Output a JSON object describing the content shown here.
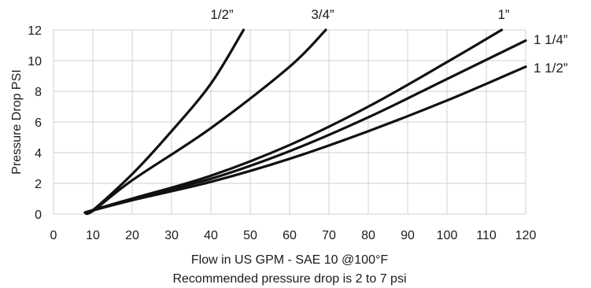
{
  "chart_data": {
    "type": "line",
    "xlabel": "Flow in US GPM - SAE 10 @100°F",
    "note": "Recommended pressure drop is 2 to 7 psi",
    "ylabel": "Pressure Drop PSI",
    "xlim": [
      0,
      120
    ],
    "ylim": [
      0,
      12
    ],
    "x_ticks": [
      "0",
      "10",
      "20",
      "30",
      "40",
      "50",
      "60",
      "70",
      "80",
      "90",
      "100",
      "110",
      "120"
    ],
    "y_ticks": [
      "0",
      "2",
      "4",
      "6",
      "8",
      "10",
      "12"
    ],
    "grid": true,
    "series": [
      {
        "name": "1/2”",
        "points": [
          [
            8,
            0.1
          ],
          [
            10,
            0.25
          ],
          [
            20,
            2.6
          ],
          [
            30,
            5.4
          ],
          [
            40,
            8.5
          ],
          [
            48.3,
            12
          ]
        ]
      },
      {
        "name": "3/4”",
        "points": [
          [
            8,
            0.1
          ],
          [
            10,
            0.2
          ],
          [
            20,
            2.2
          ],
          [
            40,
            5.6
          ],
          [
            60,
            9.6
          ],
          [
            69.2,
            12
          ]
        ]
      },
      {
        "name": "1”",
        "points": [
          [
            8,
            0.1
          ],
          [
            20,
            1.0
          ],
          [
            40,
            2.5
          ],
          [
            60,
            4.5
          ],
          [
            80,
            7.0
          ],
          [
            100,
            9.9
          ],
          [
            113.9,
            12
          ]
        ]
      },
      {
        "name": "1 1/4”",
        "points": [
          [
            8,
            0.1
          ],
          [
            20,
            1.0
          ],
          [
            40,
            2.3
          ],
          [
            60,
            4.1
          ],
          [
            80,
            6.3
          ],
          [
            100,
            8.8
          ],
          [
            120,
            11.3
          ]
        ]
      },
      {
        "name": "1 1/2”",
        "points": [
          [
            8,
            0.1
          ],
          [
            20,
            0.9
          ],
          [
            40,
            2.1
          ],
          [
            60,
            3.6
          ],
          [
            80,
            5.4
          ],
          [
            100,
            7.4
          ],
          [
            120,
            9.6
          ]
        ]
      }
    ]
  }
}
